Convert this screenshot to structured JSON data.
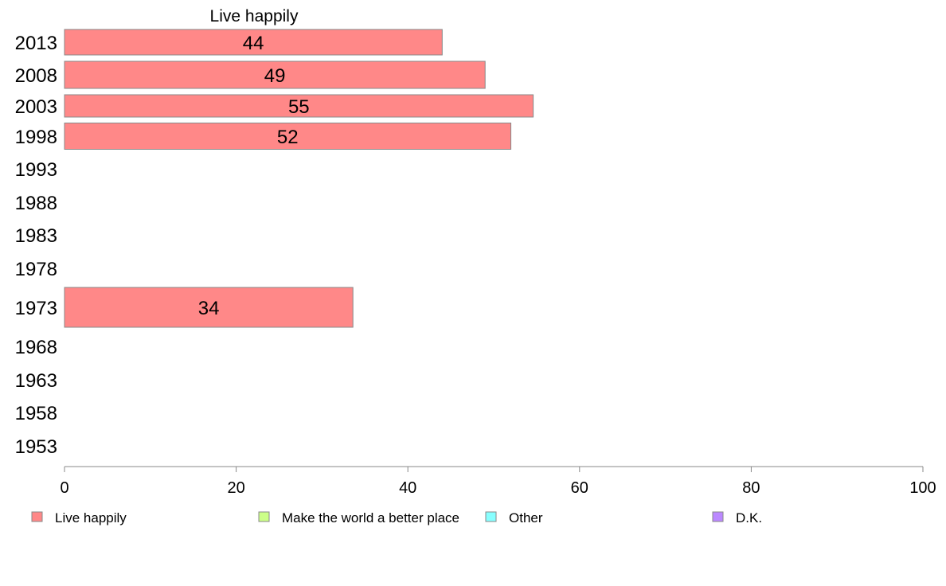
{
  "chart_data": {
    "type": "bar",
    "orientation": "horizontal",
    "title": "Live happily",
    "categories": [
      "2013",
      "2008",
      "2003",
      "1998",
      "1993",
      "1988",
      "1983",
      "1978",
      "1973",
      "1968",
      "1963",
      "1958",
      "1953"
    ],
    "series": [
      {
        "name": "Live happily",
        "color": "#ff8888",
        "values": [
          44,
          49,
          54.6,
          52,
          null,
          null,
          null,
          null,
          33.6,
          null,
          null,
          null,
          null
        ],
        "labels": [
          "44",
          "49",
          "55",
          "52",
          "",
          "",
          "",
          "",
          "34",
          "",
          "",
          "",
          ""
        ]
      }
    ],
    "xlim": [
      0,
      100
    ],
    "xticks": [
      0,
      20,
      40,
      60,
      80,
      100
    ],
    "grid": false,
    "legend": {
      "position": "bottom",
      "items": [
        {
          "label": "Live happily",
          "color": "#ff8888"
        },
        {
          "label": "Make the world a better place",
          "color": "#ccff88"
        },
        {
          "label": "Other",
          "color": "#88ffff"
        },
        {
          "label": "D.K.",
          "color": "#bb88ff"
        }
      ]
    }
  }
}
